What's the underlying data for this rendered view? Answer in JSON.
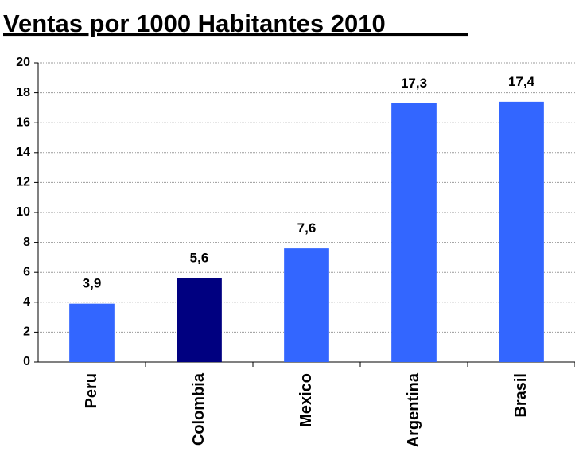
{
  "chart_data": {
    "type": "bar",
    "title": "Ventas por 1000 Habitantes 2010______",
    "categories": [
      "Peru",
      "Colombia",
      "Mexico",
      "Argentina",
      "Brasil"
    ],
    "values": [
      3.9,
      5.6,
      7.6,
      17.3,
      17.4
    ],
    "value_labels": [
      "3,9",
      "5,6",
      "7,6",
      "17,3",
      "17,4"
    ],
    "colors": [
      "#3366ff",
      "#000080",
      "#3366ff",
      "#3366ff",
      "#3366ff"
    ],
    "ylim": [
      0,
      20
    ],
    "yticks": [
      0,
      2,
      4,
      6,
      8,
      10,
      12,
      14,
      16,
      18,
      20
    ],
    "grid": true
  }
}
